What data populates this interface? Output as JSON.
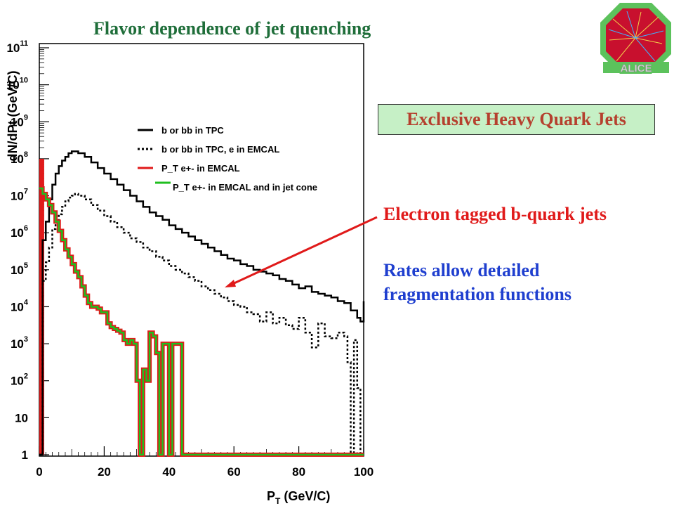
{
  "slide": {
    "title": "Flavor dependence of jet quenching",
    "boxed_label": "Exclusive Heavy Quark Jets",
    "annotation_red": "Electron tagged b-quark jets",
    "annotation_blue_lines": [
      "Rates allow detailed",
      "fragmentation functions"
    ],
    "logo_text": "ALICE",
    "colors": {
      "title": "#1f6e3a",
      "boxed_bg": "#c6f0c6",
      "boxed_text": "#b5402e",
      "red": "#e01a1a",
      "blue": "#1f3fcf"
    }
  },
  "chart_data": {
    "type": "line",
    "xlabel": "P_T (GeV/C)",
    "ylabel": "dN/dPt (GeV/C)",
    "xlim": [
      0,
      100
    ],
    "ylim_log10": [
      0,
      11
    ],
    "x_ticks": [
      "0",
      "20",
      "40",
      "60",
      "80",
      "100"
    ],
    "y_ticks": [
      {
        "base": "1",
        "exp": ""
      },
      {
        "base": "10",
        "exp": ""
      },
      {
        "base": "10",
        "exp": "2"
      },
      {
        "base": "10",
        "exp": "3"
      },
      {
        "base": "10",
        "exp": "4"
      },
      {
        "base": "10",
        "exp": "5"
      },
      {
        "base": "10",
        "exp": "6"
      },
      {
        "base": "10",
        "exp": "7"
      },
      {
        "base": "10",
        "exp": "8"
      },
      {
        "base": "10",
        "exp": "9"
      },
      {
        "base": "10",
        "exp": "10"
      },
      {
        "base": "10",
        "exp": "11"
      }
    ],
    "legend": [
      {
        "label": "b or bb in TPC",
        "color": "#000000",
        "dash": "solid"
      },
      {
        "label": "b or bb in TPC, e in EMCAL",
        "color": "#000000",
        "dash": "dotted"
      },
      {
        "label": "P_T e+- in EMCAL",
        "color": "#e01a1a",
        "dash": "solid"
      },
      {
        "label": "P_T e+- in EMCAL and in jet cone",
        "color": "#1fbf1f",
        "dash": "solid"
      }
    ],
    "series": [
      {
        "name": "b or bb in TPC",
        "color": "#000000",
        "dash": "solid",
        "x": [
          0,
          1,
          2,
          3,
          4,
          5,
          6,
          7,
          8,
          9,
          10,
          11,
          12,
          14,
          16,
          18,
          20,
          22,
          24,
          26,
          28,
          30,
          32,
          34,
          36,
          38,
          40,
          42,
          44,
          46,
          48,
          50,
          52,
          54,
          56,
          58,
          60,
          62,
          64,
          66,
          68,
          70,
          72,
          74,
          76,
          78,
          80,
          82,
          84,
          86,
          88,
          90,
          92,
          94,
          96,
          98,
          99,
          100
        ],
        "y": [
          0,
          5.8,
          6.3,
          6.9,
          7.3,
          7.6,
          7.8,
          7.95,
          8.05,
          8.15,
          8.2,
          8.2,
          8.15,
          8.05,
          7.9,
          7.75,
          7.6,
          7.45,
          7.3,
          7.15,
          7.0,
          6.85,
          6.7,
          6.55,
          6.45,
          6.35,
          6.2,
          6.1,
          6.0,
          5.9,
          5.8,
          5.7,
          5.6,
          5.5,
          5.4,
          5.3,
          5.25,
          5.15,
          5.1,
          5.0,
          4.95,
          4.9,
          4.85,
          4.75,
          4.7,
          4.6,
          4.5,
          4.55,
          4.4,
          4.35,
          4.3,
          4.25,
          4.15,
          4.1,
          3.9,
          3.7,
          3.6,
          4.15
        ]
      },
      {
        "name": "b or bb in TPC, e in EMCAL",
        "color": "#000000",
        "dash": "dotted",
        "x": [
          0,
          1,
          2,
          3,
          4,
          5,
          6,
          7,
          8,
          9,
          10,
          11,
          12,
          14,
          16,
          18,
          20,
          22,
          24,
          26,
          28,
          30,
          32,
          34,
          36,
          38,
          40,
          42,
          44,
          46,
          48,
          50,
          52,
          54,
          56,
          58,
          60,
          62,
          64,
          66,
          68,
          70,
          72,
          74,
          76,
          78,
          80,
          82,
          84,
          86,
          88,
          90,
          92,
          94,
          95,
          96,
          97,
          98,
          99
        ],
        "y": [
          0,
          4.7,
          5.2,
          5.6,
          6.1,
          6.3,
          6.5,
          6.7,
          6.85,
          6.95,
          7.0,
          7.05,
          7.0,
          6.9,
          6.75,
          6.6,
          6.45,
          6.3,
          6.15,
          6.0,
          5.85,
          5.75,
          5.6,
          5.5,
          5.35,
          5.25,
          5.1,
          5.0,
          4.9,
          4.8,
          4.7,
          4.55,
          4.45,
          4.35,
          4.25,
          4.15,
          4.05,
          4.0,
          3.85,
          3.8,
          3.6,
          3.85,
          3.55,
          3.7,
          3.5,
          3.4,
          3.7,
          3.3,
          2.9,
          3.55,
          3.2,
          3.15,
          3.3,
          3.2,
          2.5,
          0.0,
          3.1,
          1.8,
          0.0
        ]
      },
      {
        "name": "P_T e+- in EMCAL",
        "color": "#e01a1a",
        "dash": "solid",
        "x": [
          0,
          1,
          2,
          3,
          4,
          5,
          6,
          7,
          8,
          9,
          10,
          11,
          12,
          13,
          14,
          15,
          16,
          17,
          18,
          19,
          20,
          21,
          22,
          23,
          24,
          25,
          26,
          27,
          28,
          29,
          30,
          31,
          32,
          33,
          34,
          35,
          36,
          37,
          38,
          39,
          40,
          41,
          42,
          43,
          44,
          45,
          50,
          60,
          70,
          80,
          90,
          100
        ],
        "y": [
          7.2,
          7.05,
          6.9,
          6.75,
          6.55,
          6.3,
          6.05,
          5.8,
          5.55,
          5.35,
          5.15,
          4.95,
          4.8,
          4.55,
          4.3,
          4.1,
          4.0,
          4.0,
          3.95,
          3.85,
          3.85,
          3.55,
          3.45,
          3.4,
          3.35,
          3.3,
          3.1,
          3.0,
          3.1,
          3.0,
          2.0,
          0.0,
          2.3,
          2.0,
          3.3,
          3.2,
          2.75,
          0.0,
          3.0,
          3.0,
          0.0,
          3.0,
          3.0,
          3.0,
          0.0,
          0.0,
          0.0,
          0.0,
          0.0,
          0.0,
          0.0,
          0.0
        ]
      },
      {
        "name": "P_T e+- in EMCAL and in jet cone",
        "color": "#1fbf1f",
        "dash": "solid",
        "x": [
          0,
          1,
          2,
          3,
          4,
          5,
          6,
          7,
          8,
          9,
          10,
          11,
          12,
          13,
          14,
          15,
          16,
          17,
          18,
          19,
          20,
          21,
          22,
          23,
          24,
          25,
          26,
          27,
          28,
          29,
          30,
          31,
          32,
          33,
          34,
          35,
          36,
          37,
          38,
          39,
          40,
          41,
          42,
          43,
          44,
          45,
          50,
          60,
          70,
          80,
          90,
          100
        ],
        "y": [
          7.2,
          7.05,
          6.9,
          6.75,
          6.55,
          6.3,
          6.05,
          5.8,
          5.55,
          5.35,
          5.15,
          4.95,
          4.8,
          4.55,
          4.3,
          4.1,
          4.0,
          4.0,
          3.95,
          3.85,
          3.85,
          3.55,
          3.45,
          3.4,
          3.35,
          3.3,
          3.1,
          3.0,
          3.1,
          3.0,
          2.0,
          0.0,
          2.3,
          2.0,
          3.3,
          3.2,
          2.75,
          0.0,
          3.0,
          3.0,
          0.0,
          3.0,
          3.0,
          3.0,
          0.0,
          0.0,
          0.0,
          0.0,
          0.0,
          0.0,
          0.0,
          0.0
        ]
      }
    ],
    "red_spike": {
      "x_range": [
        0,
        1.5
      ],
      "y": 8.0
    }
  }
}
